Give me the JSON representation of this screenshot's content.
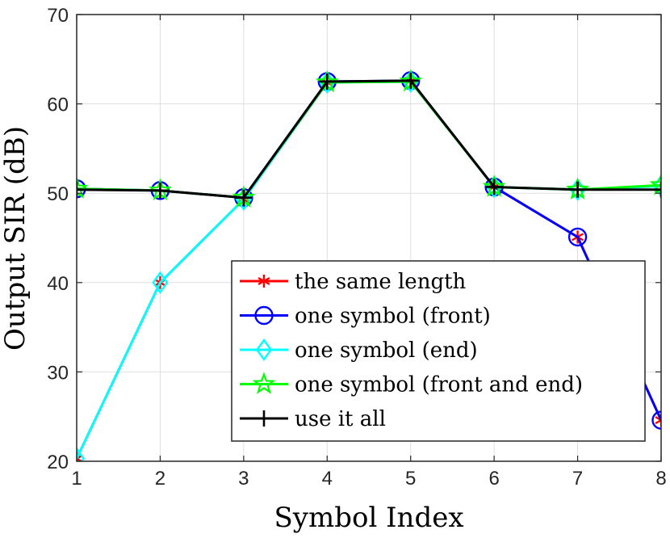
{
  "chart_data": {
    "type": "line",
    "xlabel": "Symbol Index",
    "ylabel": "Output SIR (dB)",
    "xlim": [
      1,
      8
    ],
    "ylim": [
      20,
      70
    ],
    "xticks": [
      1,
      2,
      3,
      4,
      5,
      6,
      7,
      8
    ],
    "yticks": [
      20,
      30,
      40,
      50,
      60,
      70
    ],
    "grid": true,
    "legend_position": "bottom-right",
    "x": [
      1,
      2,
      3,
      4,
      5,
      6,
      7,
      8
    ],
    "series": [
      {
        "name": "the same length",
        "color": "#ff0000",
        "marker": "asterisk",
        "values": [
          20.3,
          40.0,
          49.3,
          62.4,
          62.6,
          50.7,
          45.1,
          24.6
        ]
      },
      {
        "name": "one symbol (front)",
        "color": "#0000ff",
        "marker": "circle",
        "values": [
          50.5,
          50.3,
          49.5,
          62.5,
          62.6,
          50.7,
          45.1,
          24.6
        ]
      },
      {
        "name": "one symbol (end)",
        "color": "#00ffff",
        "marker": "diamond",
        "values": [
          20.3,
          40.0,
          49.3,
          62.4,
          62.5,
          50.7,
          50.4,
          50.8
        ]
      },
      {
        "name": "one symbol (front and end)",
        "color": "#00ff00",
        "marker": "pentagram",
        "values": [
          50.5,
          50.3,
          49.5,
          62.4,
          62.5,
          50.7,
          50.4,
          50.9
        ]
      },
      {
        "name": "use it all",
        "color": "#000000",
        "marker": "plus",
        "values": [
          50.4,
          50.3,
          49.5,
          62.5,
          62.6,
          50.7,
          50.4,
          50.4
        ]
      }
    ]
  }
}
